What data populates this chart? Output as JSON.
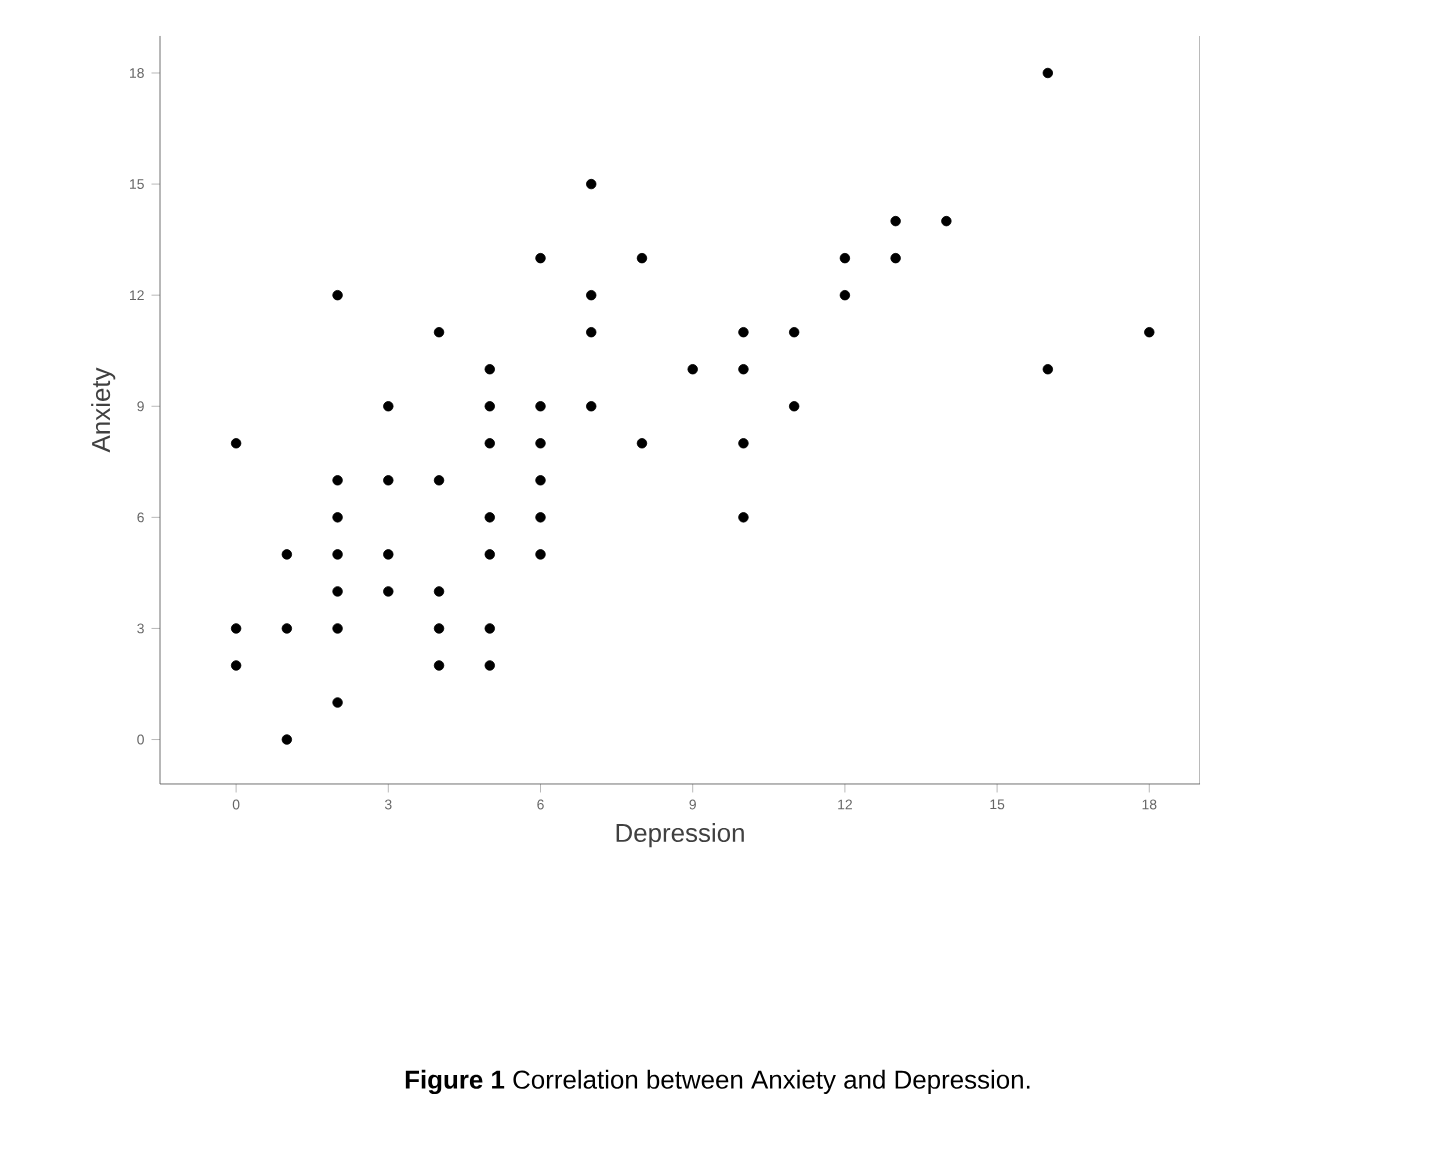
{
  "chart_data": {
    "type": "scatter",
    "xlabel": "Depression",
    "ylabel": "Anxiety",
    "x": [
      0,
      0,
      0,
      1,
      1,
      1,
      2,
      2,
      2,
      2,
      2,
      2,
      2,
      3,
      3,
      3,
      3,
      4,
      4,
      4,
      4,
      4,
      5,
      5,
      5,
      5,
      5,
      5,
      5,
      6,
      6,
      6,
      6,
      6,
      6,
      7,
      7,
      7,
      7,
      8,
      8,
      9,
      10,
      10,
      10,
      10,
      11,
      11,
      12,
      12,
      13,
      13,
      14,
      16,
      16,
      18
    ],
    "values": [
      8,
      3,
      2,
      5,
      3,
      0,
      12,
      7,
      6,
      5,
      4,
      3,
      1,
      9,
      7,
      5,
      4,
      11,
      7,
      4,
      3,
      2,
      10,
      9,
      8,
      6,
      5,
      3,
      2,
      13,
      9,
      8,
      7,
      6,
      5,
      15,
      12,
      11,
      9,
      13,
      8,
      10,
      11,
      10,
      8,
      6,
      11,
      9,
      13,
      12,
      14,
      13,
      14,
      18,
      10,
      11
    ],
    "color": "#000000",
    "marker": "circle",
    "xlim": [
      -1.5,
      19
    ],
    "ylim": [
      -1.2,
      19
    ],
    "xticks": [
      0,
      3,
      6,
      9,
      12,
      15,
      18
    ],
    "yticks": [
      0,
      3,
      6,
      9,
      12,
      15,
      18
    ],
    "annotations": [
      "**Figure 1** Correlation between Anxiety and Depression."
    ]
  }
}
